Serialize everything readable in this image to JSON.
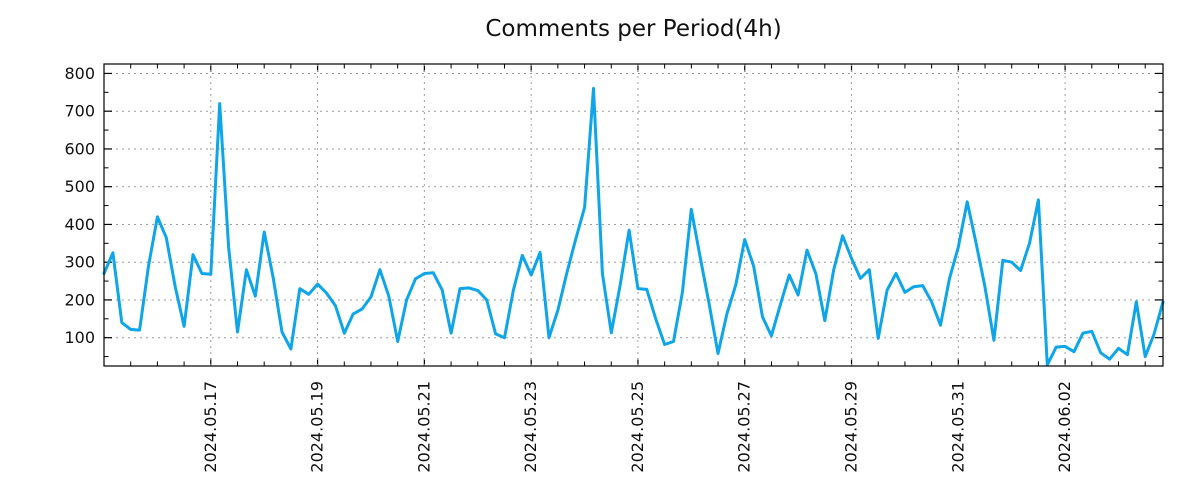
{
  "chart_title": "Comments per Period(4h)",
  "chart_data": {
    "type": "line",
    "title": "Comments per Period(4h)",
    "period_per_point": "4h",
    "series": [
      {
        "name": "comments",
        "values": [
          270,
          325,
          140,
          122,
          120,
          290,
          420,
          365,
          235,
          130,
          320,
          270,
          268,
          720,
          340,
          115,
          280,
          210,
          380,
          260,
          115,
          70,
          230,
          215,
          242,
          218,
          185,
          112,
          163,
          176,
          208,
          280,
          210,
          90,
          200,
          256,
          270,
          272,
          226,
          112,
          230,
          232,
          225,
          200,
          110,
          100,
          226,
          318,
          266,
          326,
          100,
          173,
          271,
          361,
          445,
          760,
          270,
          113,
          240,
          385,
          230,
          228,
          150,
          82,
          90,
          220,
          440,
          313,
          190,
          58,
          163,
          240,
          360,
          290,
          155,
          105,
          187,
          266,
          213,
          332,
          269,
          145,
          280,
          370,
          310,
          257,
          280,
          98,
          226,
          270,
          220,
          235,
          238,
          195,
          133,
          256,
          340,
          460,
          350,
          234,
          93,
          305,
          300,
          278,
          350,
          465,
          28,
          75,
          77,
          63,
          112,
          117,
          60,
          43,
          72,
          55,
          195,
          50,
          110,
          195
        ]
      }
    ],
    "x_tick_labels": [
      "2024.05.17",
      "2024.05.19",
      "2024.05.21",
      "2024.05.23",
      "2024.05.25",
      "2024.05.27",
      "2024.05.29",
      "2024.05.31",
      "2024.06.02"
    ],
    "x_first_major_point_index": 12,
    "x_points_per_major": 12,
    "x_points_per_minor": 3,
    "y_tick_labels": [
      "100",
      "200",
      "300",
      "400",
      "500",
      "600",
      "700",
      "800"
    ],
    "y_ticks": [
      100,
      200,
      300,
      400,
      500,
      600,
      700,
      800
    ],
    "y_minor_step": 50,
    "ylim": [
      25,
      825
    ],
    "grid": true,
    "legend": "none",
    "colors": {
      "line": "#0ea5e9",
      "grid": "#9e9e9e",
      "frame": "#000000",
      "text": "#111111"
    }
  }
}
